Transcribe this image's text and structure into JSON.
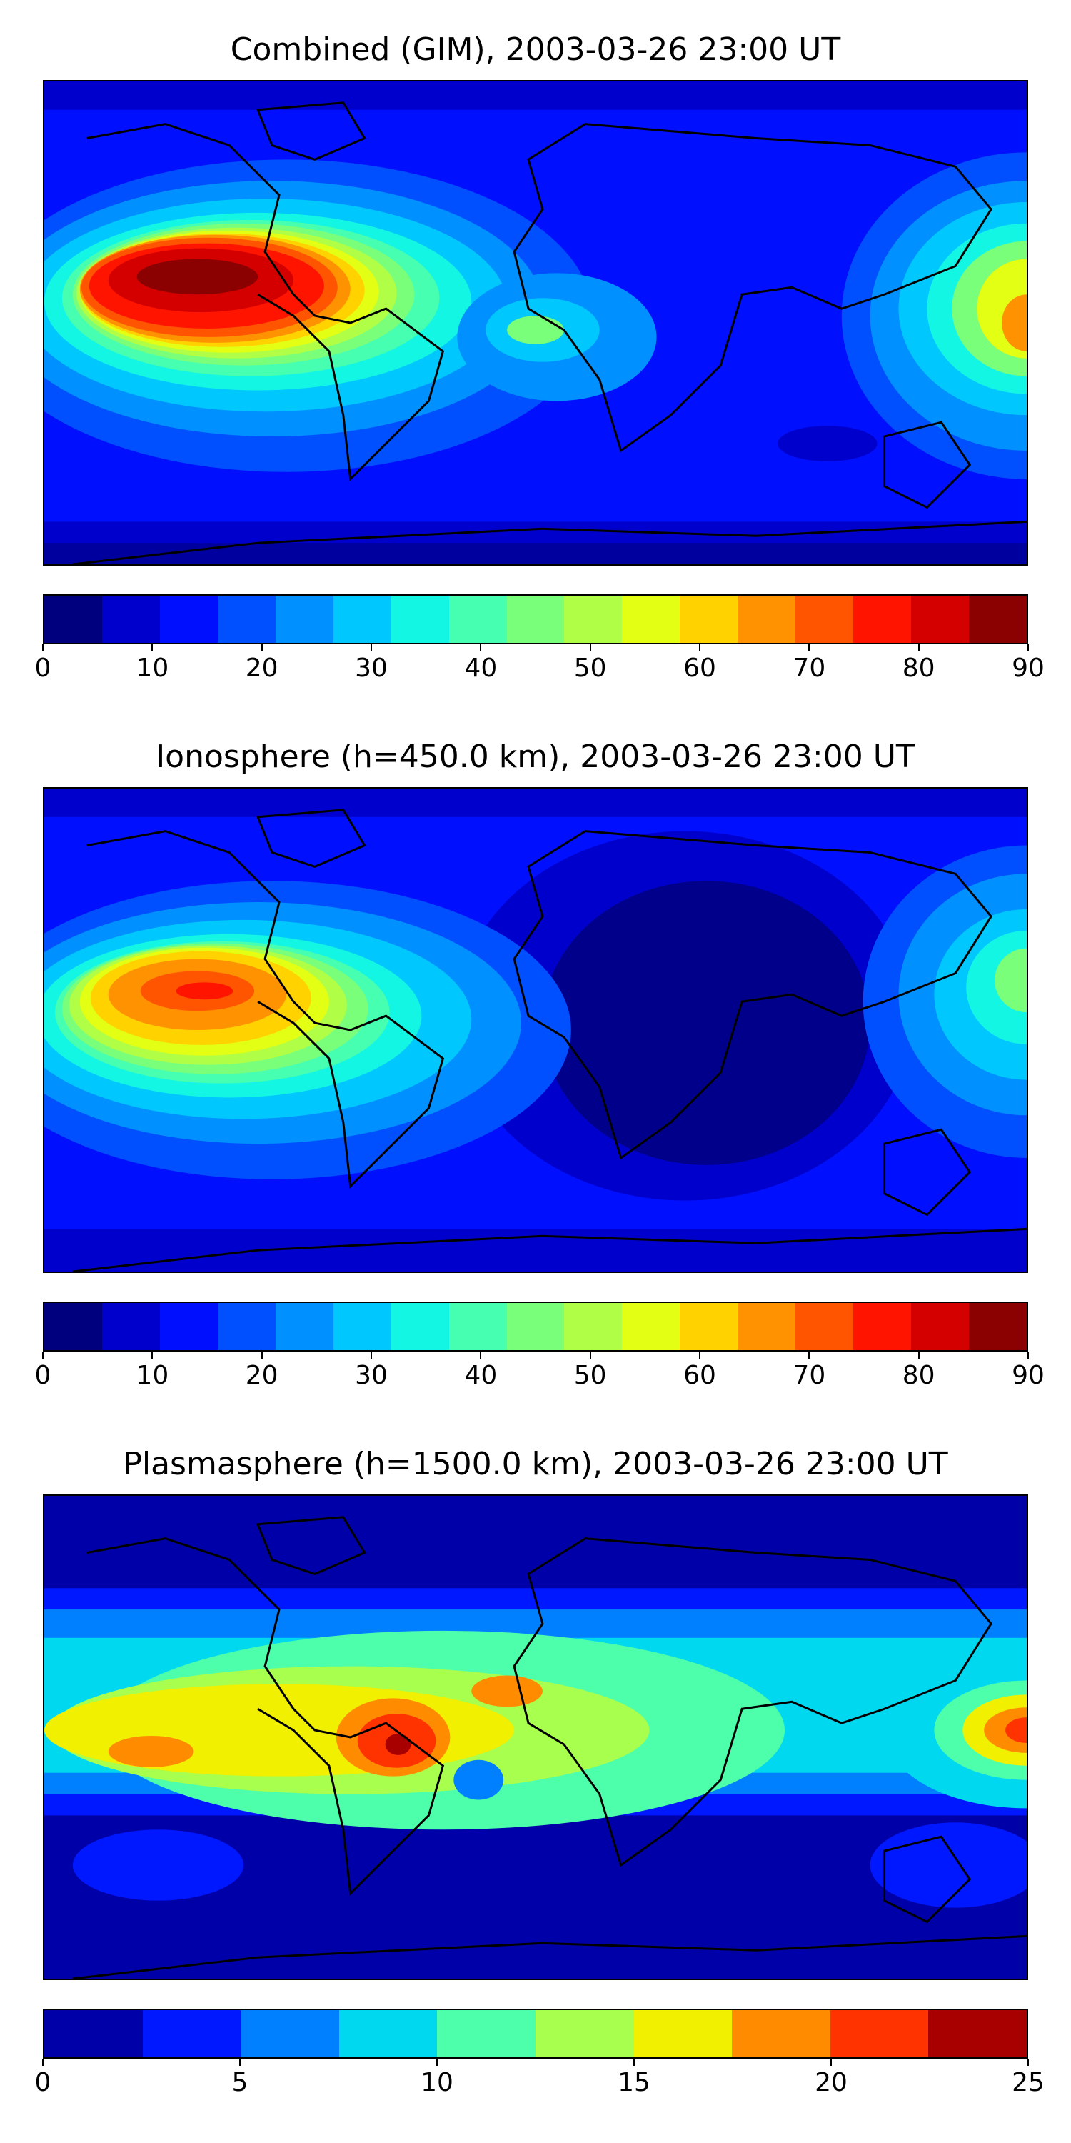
{
  "panels": [
    {
      "title": "Combined (GIM), 2003-03-26 23:00 UT",
      "colorbar": {
        "ticks": [
          "0",
          "10",
          "20",
          "30",
          "40",
          "50",
          "60",
          "70",
          "80",
          "90"
        ],
        "colors": [
          "#00007f",
          "#0000cd",
          "#0010ff",
          "#0050ff",
          "#0090ff",
          "#00c8ff",
          "#13f6e3",
          "#46ffb0",
          "#7aff7a",
          "#b0ff46",
          "#e3ff13",
          "#ffd200",
          "#ff9200",
          "#ff5500",
          "#ff1400",
          "#d40000",
          "#8b0000"
        ]
      }
    },
    {
      "title": "Ionosphere  (h=450.0 km), 2003-03-26 23:00 UT",
      "colorbar": {
        "ticks": [
          "0",
          "10",
          "20",
          "30",
          "40",
          "50",
          "60",
          "70",
          "80",
          "90"
        ],
        "colors": [
          "#00007f",
          "#0000cd",
          "#0010ff",
          "#0050ff",
          "#0090ff",
          "#00c8ff",
          "#13f6e3",
          "#46ffb0",
          "#7aff7a",
          "#b0ff46",
          "#e3ff13",
          "#ffd200",
          "#ff9200",
          "#ff5500",
          "#ff1400",
          "#d40000",
          "#8b0000"
        ]
      }
    },
    {
      "title": "Plasmasphere (h=1500.0 km), 2003-03-26 23:00 UT",
      "colorbar": {
        "ticks": [
          "0",
          "5",
          "10",
          "15",
          "20",
          "25"
        ],
        "colors": [
          "#0000a8",
          "#0018ff",
          "#0080ff",
          "#00d8f0",
          "#4dffaa",
          "#a8ff4d",
          "#f0f000",
          "#ff8c00",
          "#ff3300",
          "#a80000"
        ]
      }
    }
  ]
}
